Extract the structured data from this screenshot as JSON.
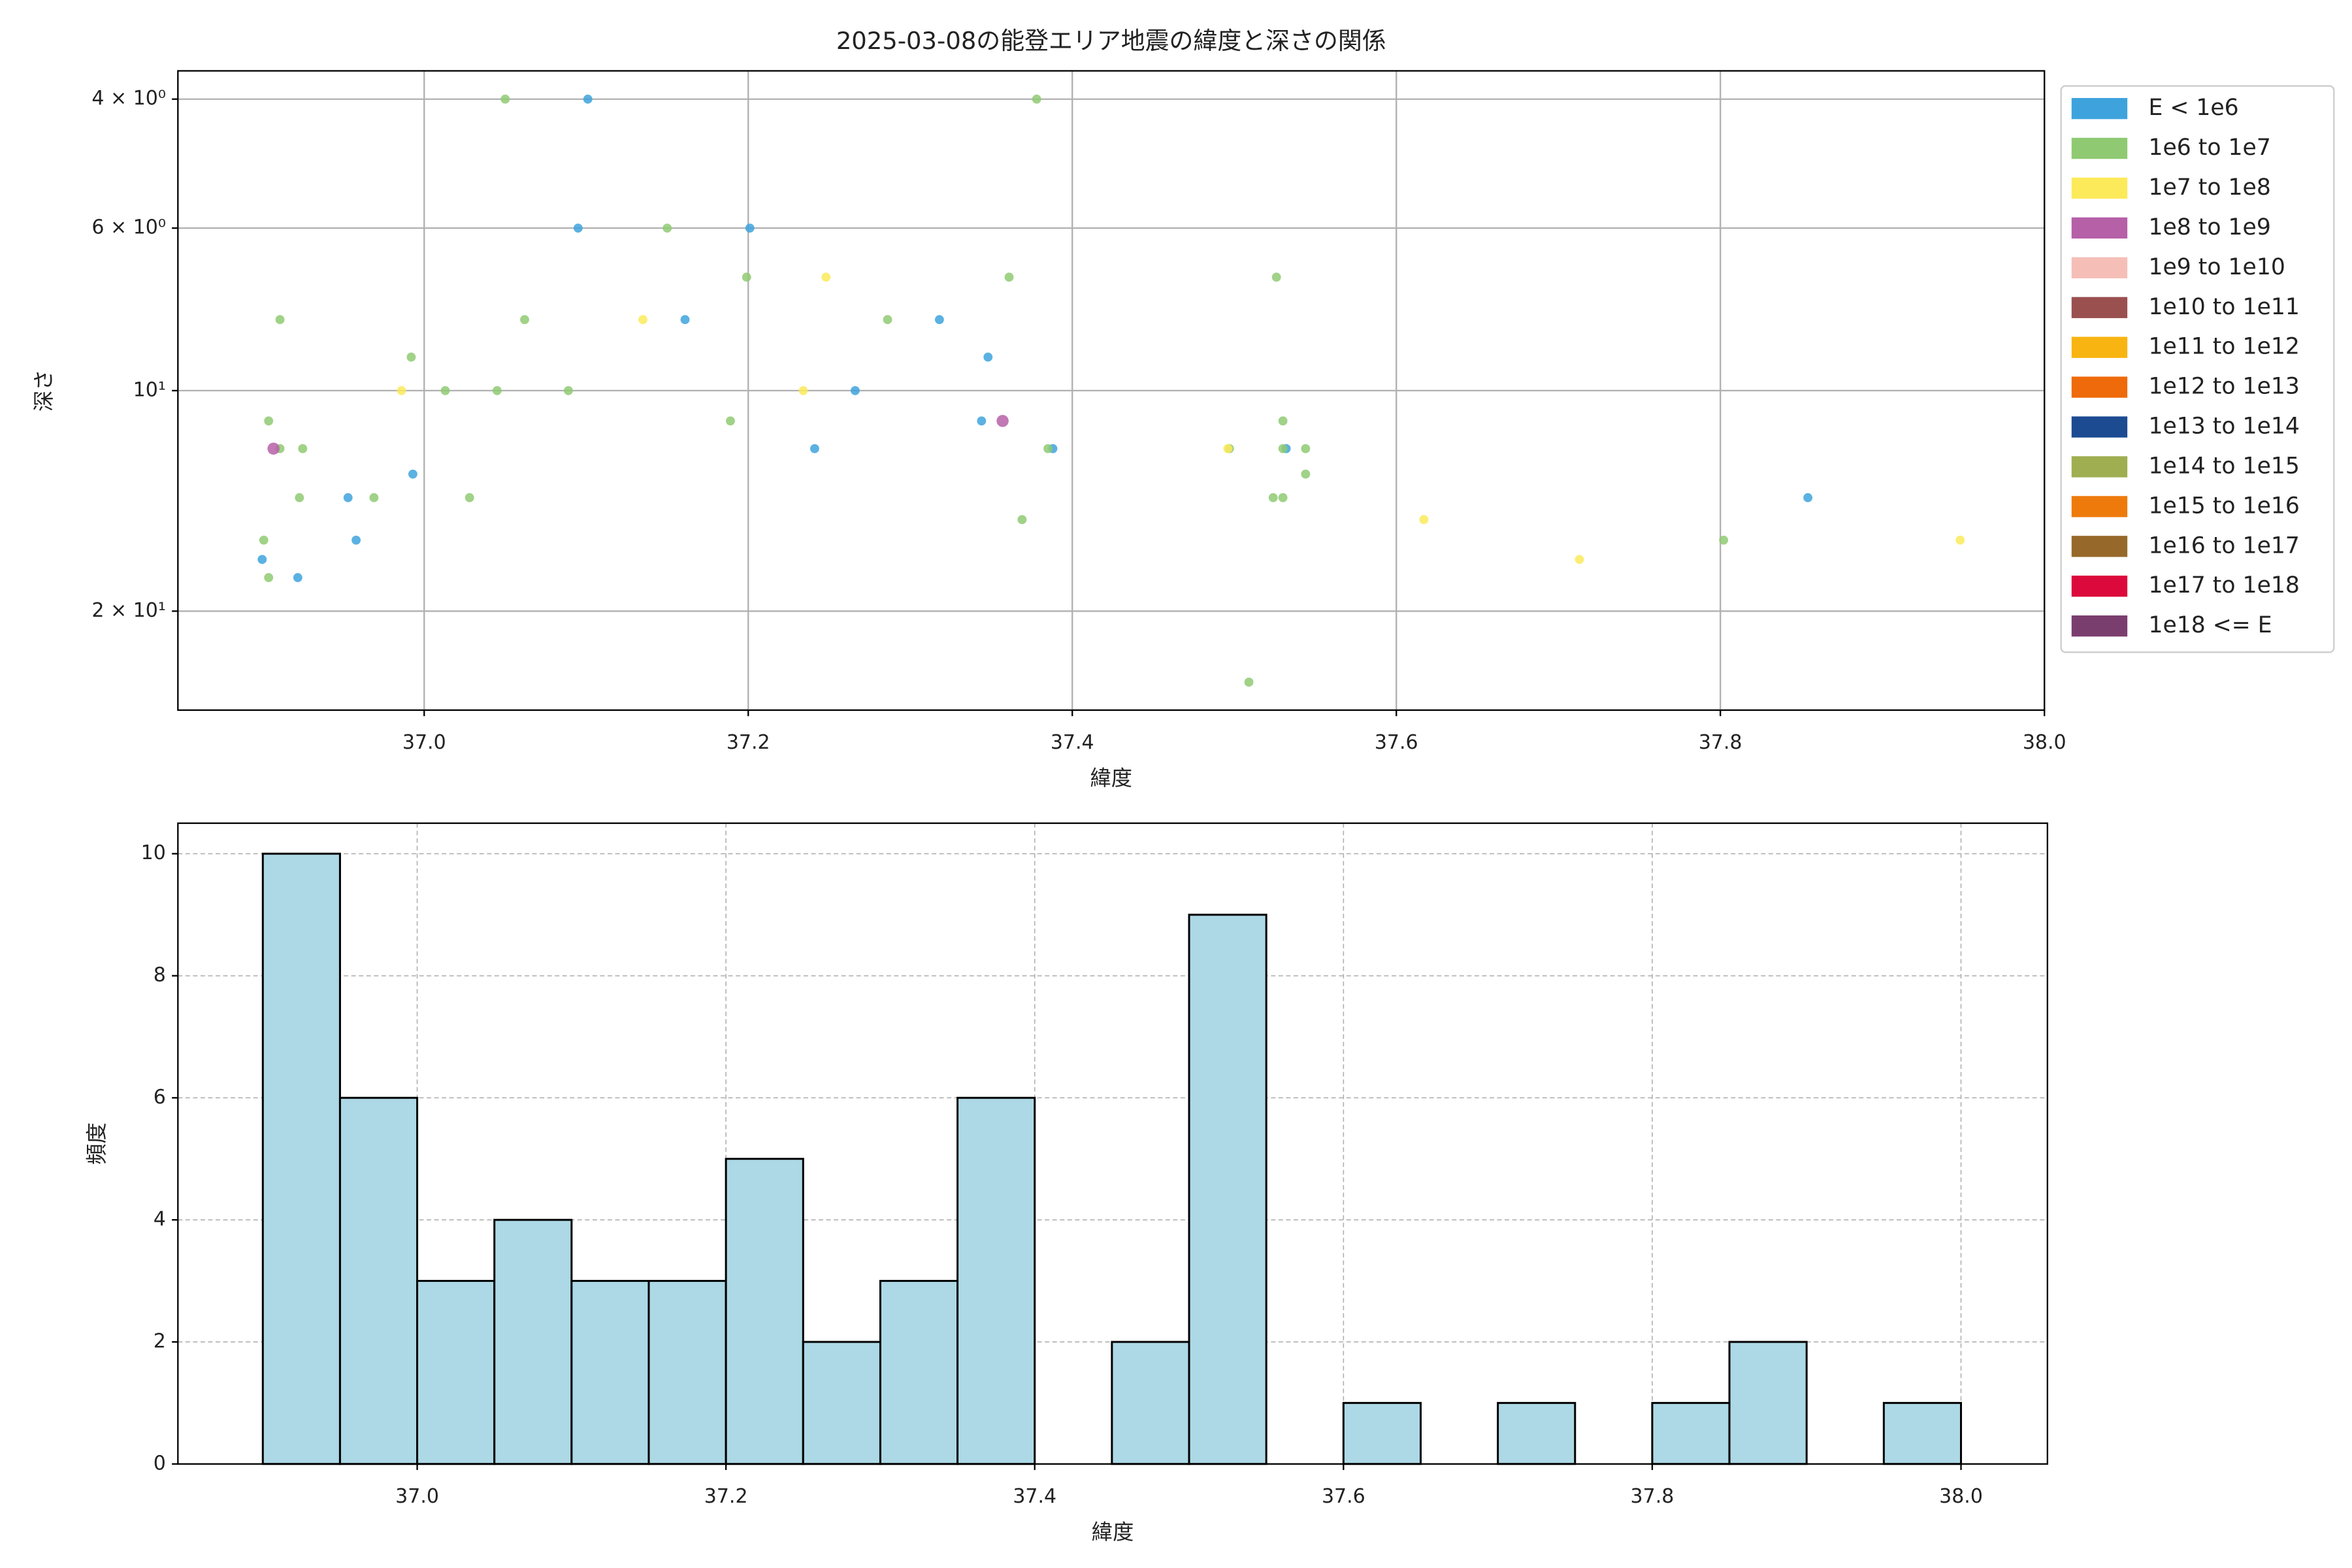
{
  "chart_data": [
    {
      "type": "scatter",
      "title": "2025-03-08の能登エリア地震の緯度と深さの関係",
      "x_label": "緯度",
      "y_label": "深さ",
      "xlim": [
        36.848,
        38.0
      ],
      "ylim": [
        3.66,
        27.3
      ],
      "y_inverted": true,
      "yscale": "log",
      "grid": true,
      "legend": "outside-upper-right",
      "xticks": [
        {
          "value": 37.0,
          "label": "37.0"
        },
        {
          "value": 37.2,
          "label": "37.2"
        },
        {
          "value": 37.4,
          "label": "37.4"
        },
        {
          "value": 37.6,
          "label": "37.6"
        },
        {
          "value": 37.8,
          "label": "37.8"
        },
        {
          "value": 38.0,
          "label": "38.0"
        }
      ],
      "yticks": [
        {
          "value": 4,
          "label": "4 × 10⁰"
        },
        {
          "value": 6,
          "label": "6 × 10⁰"
        },
        {
          "value": 10,
          "label": "10¹"
        },
        {
          "value": 20,
          "label": "2 × 10¹"
        }
      ],
      "series": [
        {
          "name": "E < 1e6",
          "color": "#3ea3dd",
          "x": [
            37.101,
            37.095,
            37.201,
            37.161,
            37.318,
            37.348,
            37.266,
            37.344,
            37.241,
            37.388,
            37.532,
            36.993,
            36.953,
            36.958,
            36.9,
            36.922,
            37.854
          ],
          "values": [
            4,
            6,
            6,
            8,
            8,
            9,
            10,
            11,
            12,
            12,
            12,
            13,
            14,
            16,
            17,
            18,
            14
          ]
        },
        {
          "name": "1e6 to 1e7",
          "color": "#8fca72",
          "x": [
            37.05,
            37.378,
            37.15,
            37.199,
            37.361,
            37.526,
            36.911,
            37.062,
            37.286,
            36.992,
            37.013,
            37.045,
            37.089,
            36.904,
            37.189,
            37.53,
            36.911,
            36.925,
            37.385,
            37.544,
            37.53,
            37.497,
            37.544,
            36.923,
            36.969,
            37.028,
            37.524,
            37.53,
            37.369,
            36.901,
            37.802,
            36.904,
            37.509
          ],
          "values": [
            4,
            4,
            6,
            7,
            7,
            7,
            8,
            8,
            8,
            9,
            10,
            10,
            10,
            11,
            11,
            11,
            12,
            12,
            12,
            12,
            12,
            12,
            13,
            14,
            14,
            14,
            14,
            14,
            15,
            16,
            16,
            18,
            25
          ]
        },
        {
          "name": "1e7 to 1e8",
          "color": "#fcea5b",
          "x": [
            37.248,
            37.135,
            36.986,
            37.234,
            37.496,
            37.617,
            37.713,
            37.948
          ],
          "values": [
            7,
            8,
            10,
            10,
            12,
            15,
            17,
            16
          ]
        },
        {
          "name": "1e8 to 1e9",
          "color": "#b660a8",
          "x": [
            36.907,
            37.357
          ],
          "values": [
            12,
            11
          ]
        },
        {
          "name": "1e9 to 1e10",
          "color": "#f5bfb8",
          "x": [],
          "values": []
        },
        {
          "name": "1e10 to 1e11",
          "color": "#9b5050",
          "x": [],
          "values": []
        },
        {
          "name": "1e11 to 1e12",
          "color": "#f8b410",
          "x": [],
          "values": []
        },
        {
          "name": "1e12 to 1e13",
          "color": "#ee6a0a",
          "x": [],
          "values": []
        },
        {
          "name": "1e13 to 1e14",
          "color": "#1c4b92",
          "x": [],
          "values": []
        },
        {
          "name": "1e14 to 1e15",
          "color": "#9fae50",
          "x": [],
          "values": []
        },
        {
          "name": "1e15 to 1e16",
          "color": "#ee7a0c",
          "x": [],
          "values": []
        },
        {
          "name": "1e16 to 1e17",
          "color": "#96692a",
          "x": [],
          "values": []
        },
        {
          "name": "1e17 to 1e18",
          "color": "#dc0a3c",
          "x": [],
          "values": []
        },
        {
          "name": "1e18 <= E",
          "color": "#7a3e6e",
          "x": [],
          "values": []
        }
      ]
    },
    {
      "type": "histogram",
      "x_label": "緯度",
      "y_label": "頻度",
      "color": "#add8e6",
      "grid": true,
      "bins": [
        36.9,
        36.95,
        37.0,
        37.05,
        37.1,
        37.15,
        37.2,
        37.25,
        37.3,
        37.35,
        37.4,
        37.45,
        37.5,
        37.55,
        37.6,
        37.65,
        37.7,
        37.75,
        37.8,
        37.85,
        37.9,
        37.95,
        38.0
      ],
      "values": [
        10,
        6,
        3,
        4,
        3,
        3,
        5,
        2,
        3,
        6,
        0,
        2,
        9,
        0,
        1,
        0,
        1,
        0,
        1,
        2,
        0,
        1
      ],
      "xlim": [
        36.845,
        38.056
      ],
      "ylim": [
        0,
        10.5
      ],
      "xticks": [
        {
          "value": 37.0,
          "label": "37.0"
        },
        {
          "value": 37.2,
          "label": "37.2"
        },
        {
          "value": 37.4,
          "label": "37.4"
        },
        {
          "value": 37.6,
          "label": "37.6"
        },
        {
          "value": 37.8,
          "label": "37.8"
        },
        {
          "value": 38.0,
          "label": "38.0"
        }
      ],
      "yticks": [
        0,
        2,
        4,
        6,
        8,
        10
      ]
    }
  ]
}
